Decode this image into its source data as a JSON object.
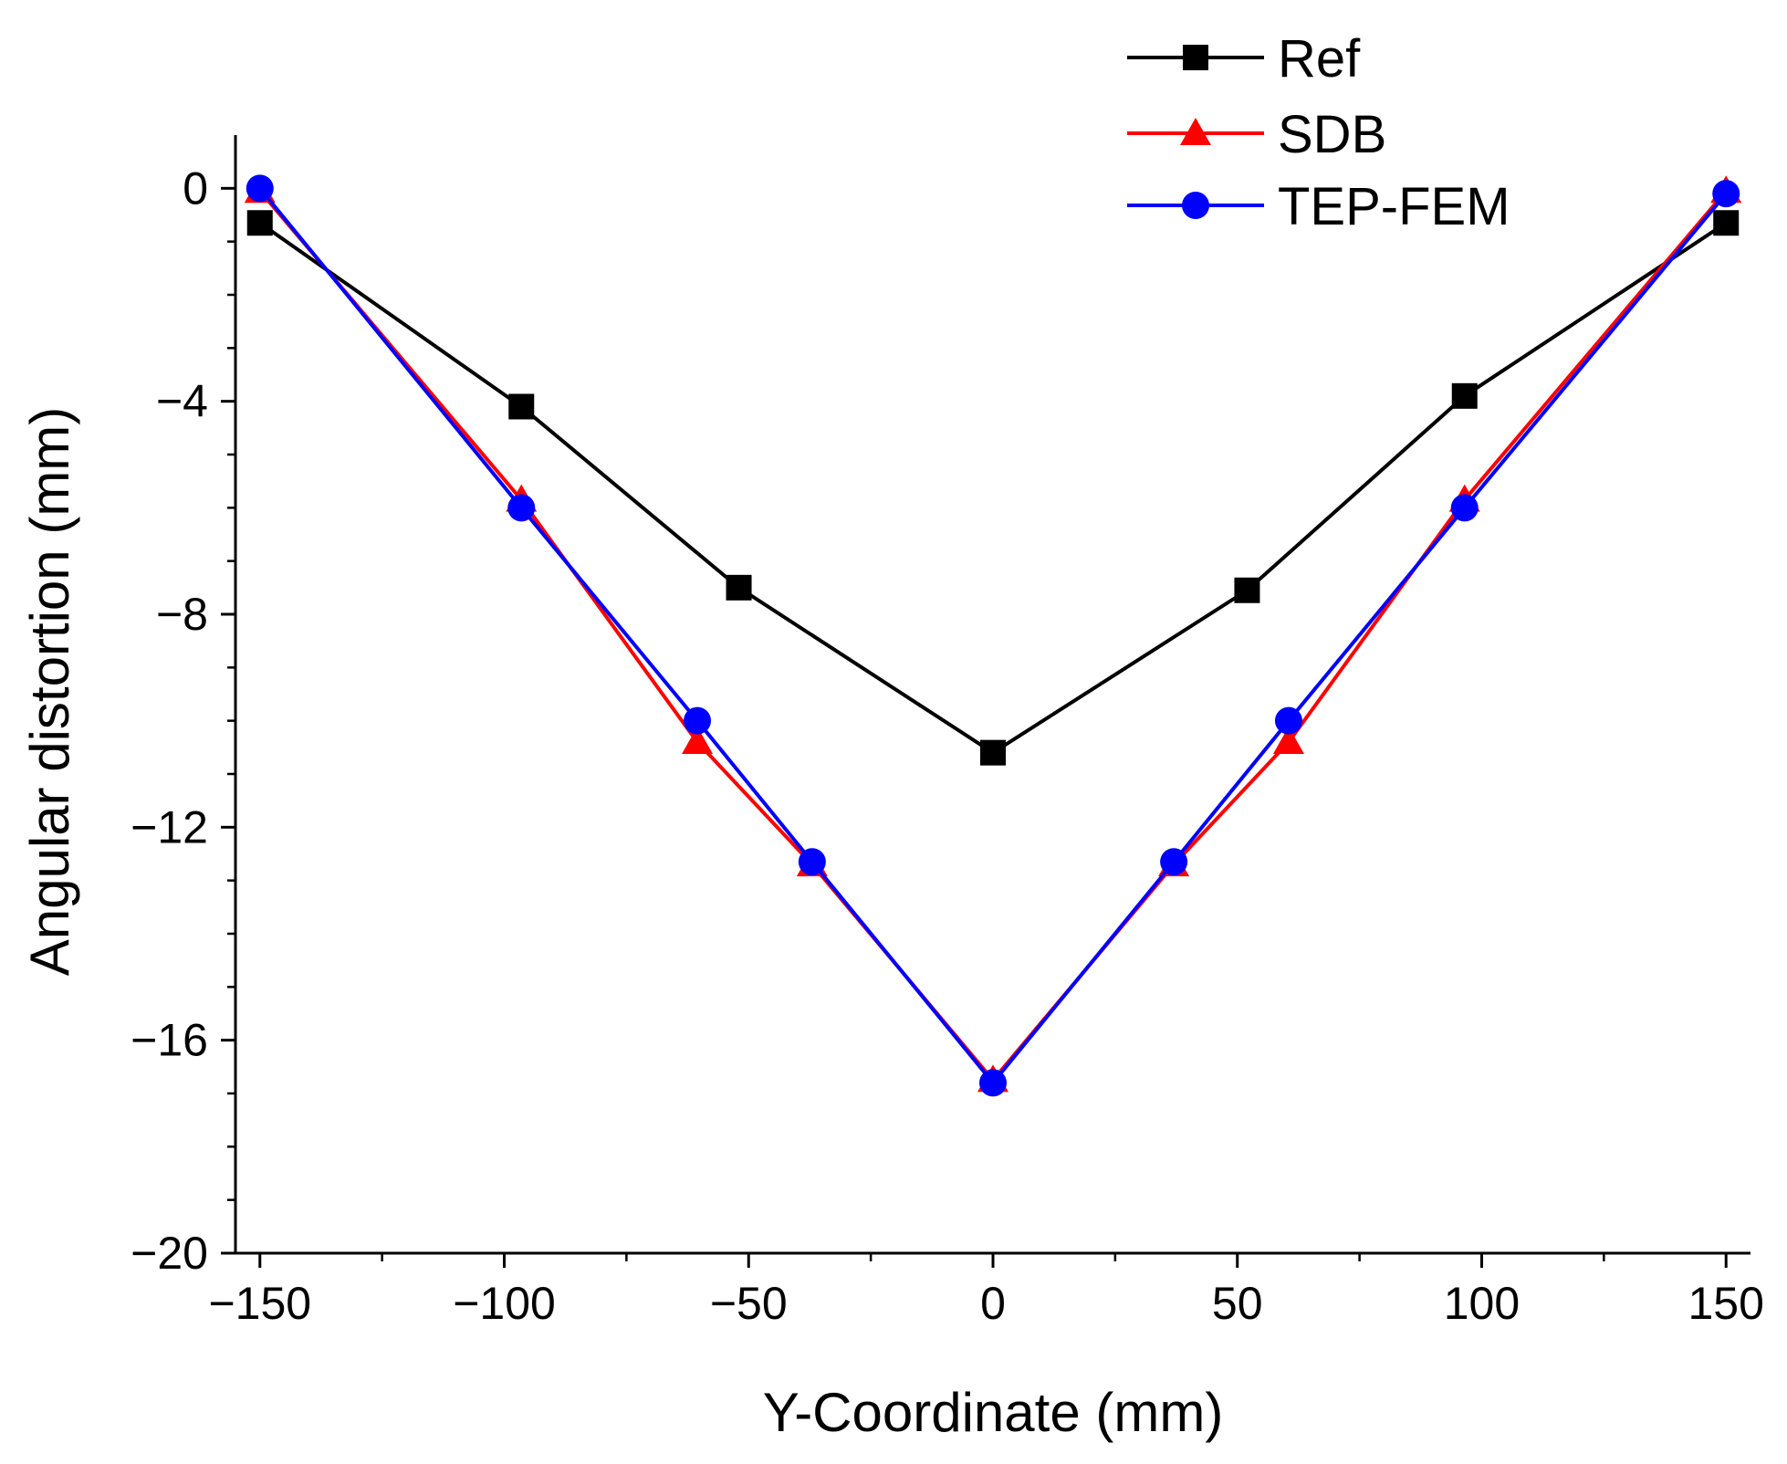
{
  "chart_data": {
    "type": "line",
    "xlabel": "Y-Coordinate (mm)",
    "ylabel": "Angular distortion (mm)",
    "xlim": [
      -155,
      155
    ],
    "ylim": [
      -20,
      1
    ],
    "xticks": [
      -150,
      -100,
      -50,
      0,
      50,
      100,
      150
    ],
    "xtick_labels": [
      "−150",
      "−100",
      "−50",
      "0",
      "50",
      "100",
      "150"
    ],
    "yticks": [
      0,
      -4,
      -8,
      -12,
      -16,
      -20
    ],
    "ytick_labels": [
      "0",
      "−4",
      "−8",
      "−12",
      "−16",
      "−20"
    ],
    "grid": false,
    "legend_position": "top-right",
    "series": [
      {
        "name": "Ref",
        "color": "#000000",
        "marker": "square",
        "x": [
          -150,
          -96.5,
          -52,
          0,
          52,
          96.5,
          150
        ],
        "y": [
          -0.65,
          -4.1,
          -7.5,
          -10.6,
          -7.55,
          -3.9,
          -0.65
        ]
      },
      {
        "name": "SDB",
        "color": "#ff0000",
        "marker": "triangle",
        "x": [
          -150,
          -96.5,
          -60.5,
          -37,
          0,
          37,
          60.5,
          96.5,
          150
        ],
        "y": [
          -0.05,
          -5.85,
          -10.4,
          -12.7,
          -16.75,
          -12.7,
          -10.4,
          -5.85,
          -0.05
        ]
      },
      {
        "name": "TEP-FEM",
        "color": "#0000ff",
        "marker": "circle",
        "x": [
          -150,
          -96.5,
          -60.5,
          -37,
          0,
          37,
          60.5,
          96.5,
          150
        ],
        "y": [
          0,
          -6.0,
          -10.0,
          -12.65,
          -16.8,
          -12.65,
          -10.0,
          -6.0,
          -0.1
        ]
      }
    ]
  }
}
